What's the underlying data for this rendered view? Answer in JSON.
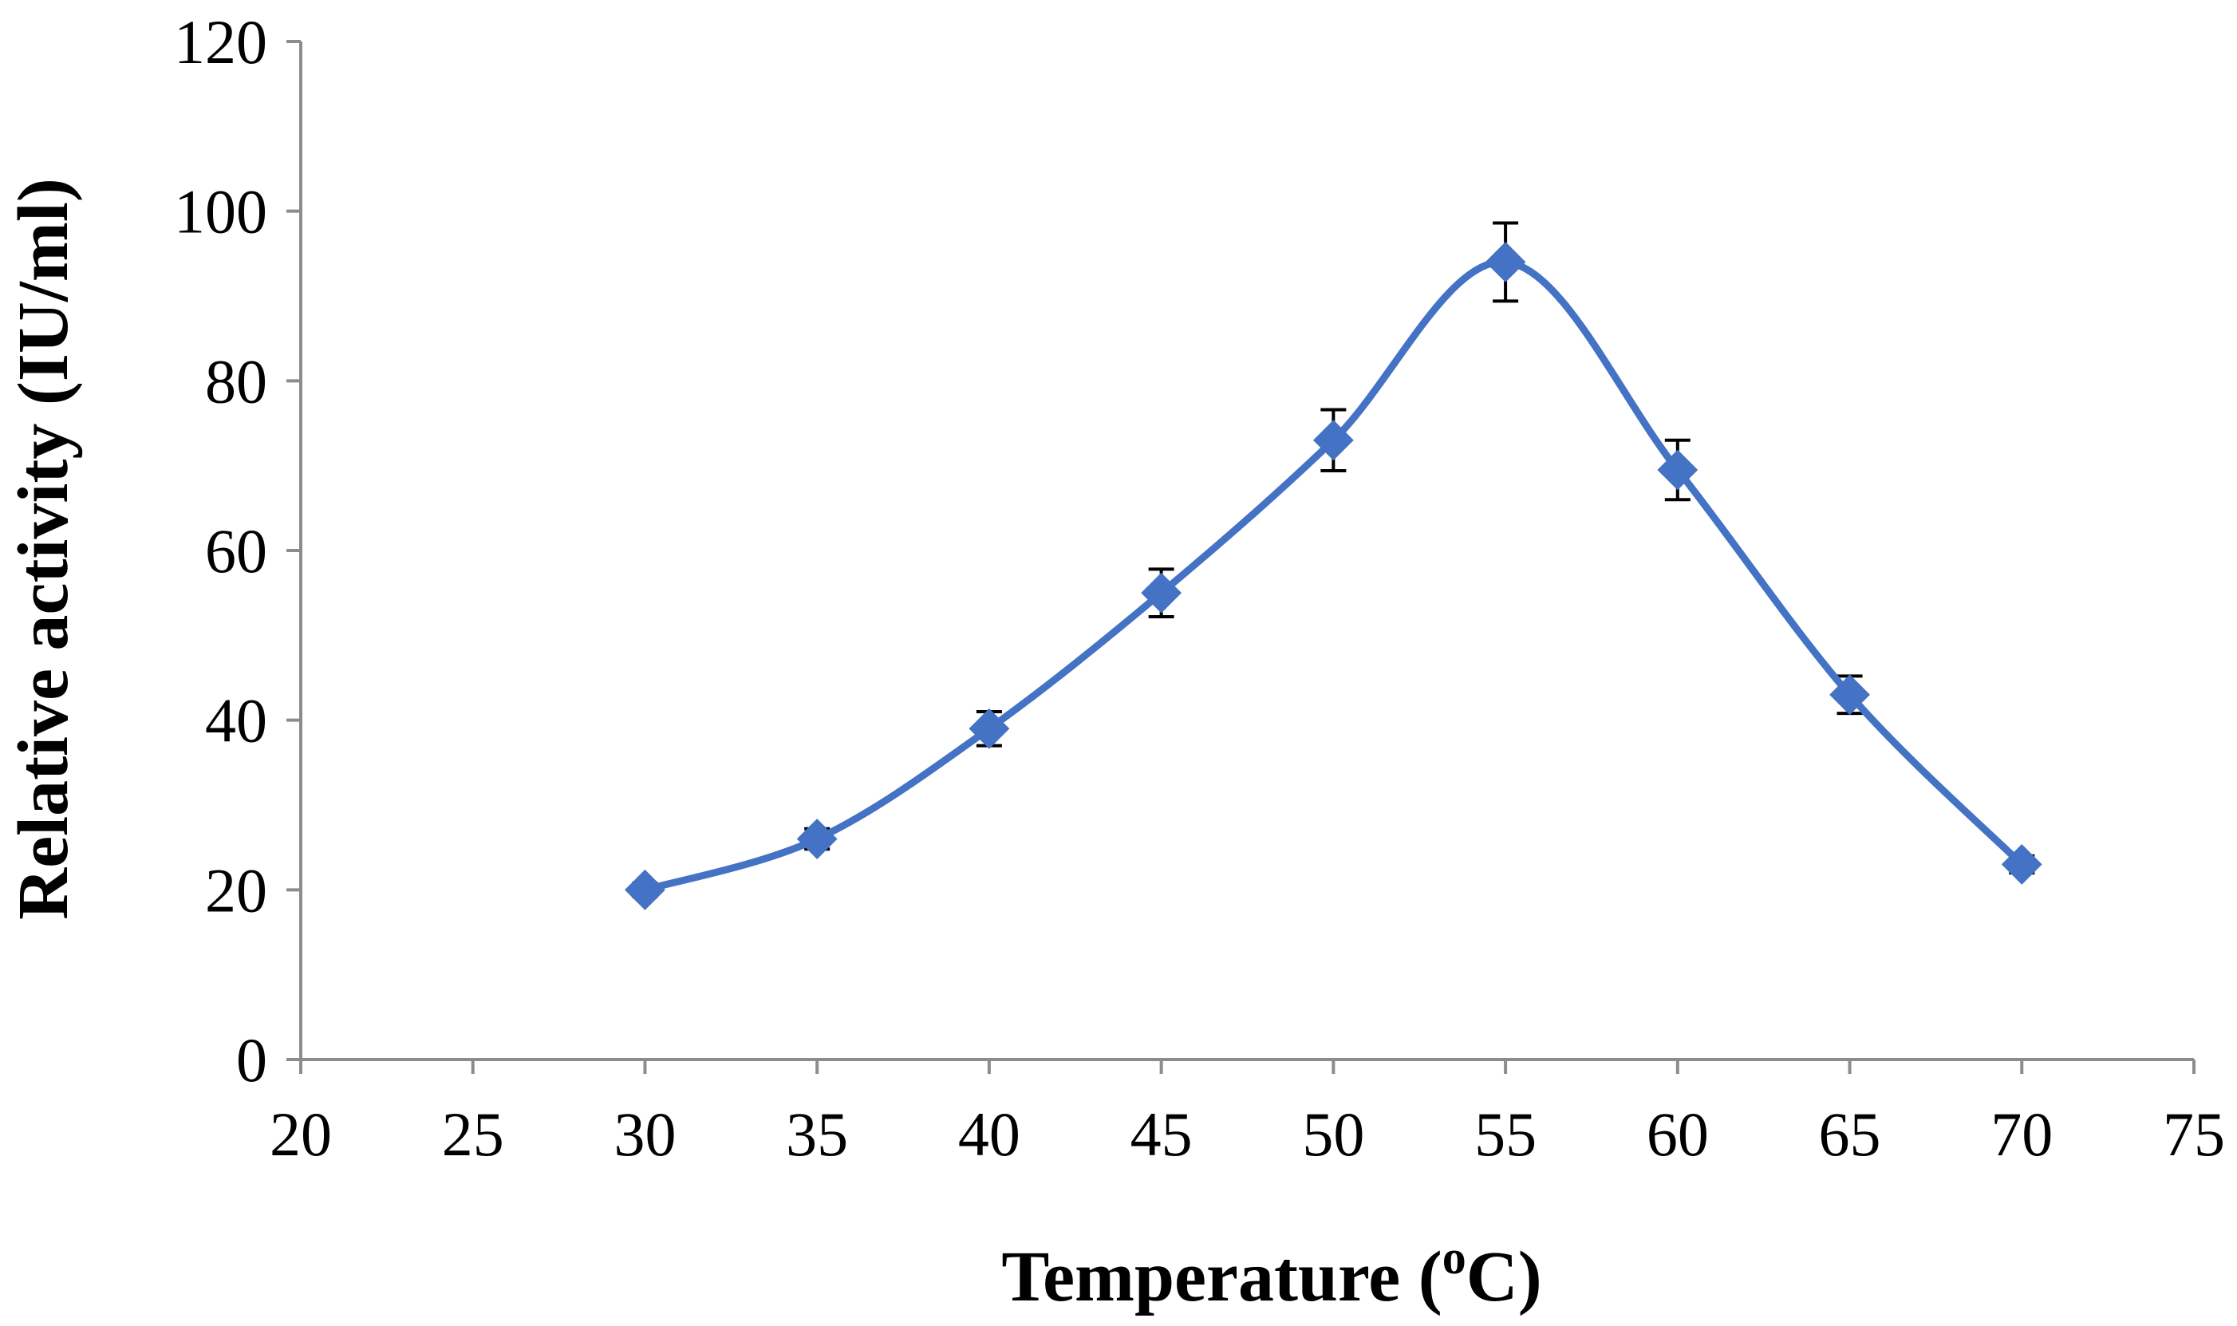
{
  "chart_data": {
    "type": "scatter",
    "title": "",
    "xlabel": "Temperature (",
    "xlabel_superscript": "o",
    "xlabel_suffix": "C)",
    "ylabel": "Relative activity (IU/ml)",
    "xlim": [
      20,
      75
    ],
    "ylim": [
      0,
      120
    ],
    "xticks": [
      20,
      25,
      30,
      35,
      40,
      45,
      50,
      55,
      60,
      65,
      70,
      75
    ],
    "yticks": [
      0,
      20,
      40,
      60,
      80,
      100,
      120
    ],
    "grid": false,
    "legend": "none",
    "line_style": "smoothed",
    "marker": "diamond",
    "series_color": "#4472C4",
    "error_bar_color": "#000000",
    "axis_color": "#8c8c8c",
    "series": [
      {
        "x": [
          30,
          35,
          40,
          45,
          50,
          55,
          60,
          65,
          70
        ],
        "y": [
          20,
          26,
          39,
          55,
          73,
          94,
          69.5,
          43,
          23
        ],
        "error": [
          0.8,
          1.2,
          2,
          2.8,
          3.6,
          4.6,
          3.5,
          2.2,
          1
        ]
      }
    ]
  }
}
